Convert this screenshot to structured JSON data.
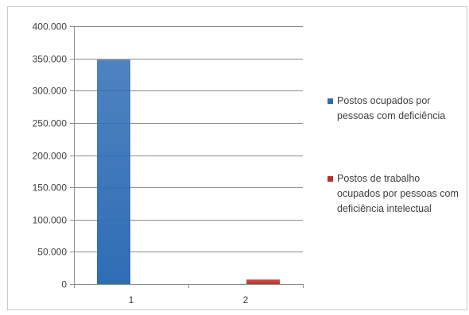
{
  "chart_data": {
    "type": "bar",
    "categories": [
      "1",
      "2"
    ],
    "series": [
      {
        "name": "Postos ocupados por pessoas com deficiência",
        "color": "#2f6db5",
        "values": [
          348000,
          null
        ]
      },
      {
        "name": "Postos de trabalho ocupados por pessoas com deficiência intelectual",
        "color": "#c0302c",
        "values": [
          null,
          7000
        ]
      }
    ],
    "y_ticks": [
      "0",
      "50.000",
      "100.000",
      "150.000",
      "200.000",
      "250.000",
      "300.000",
      "350.000",
      "400.000"
    ],
    "ylim": [
      0,
      400000
    ],
    "grid": true,
    "legend_position": "right"
  }
}
